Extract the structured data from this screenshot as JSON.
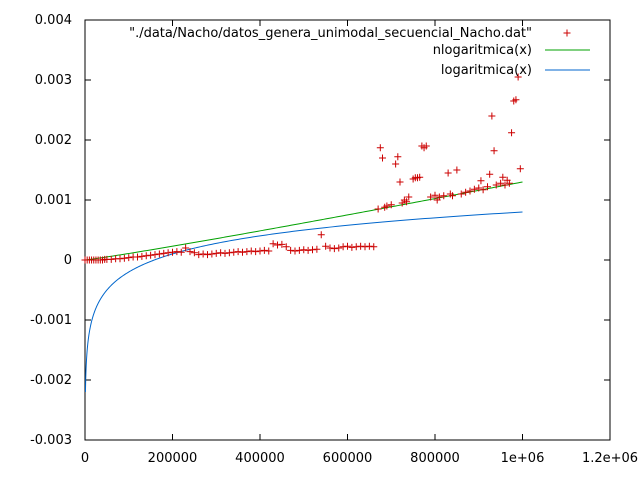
{
  "chart_data": {
    "type": "scatter",
    "title": "",
    "xlabel": "",
    "ylabel": "",
    "xlim": [
      0,
      1200000
    ],
    "ylim": [
      -0.003,
      0.004
    ],
    "grid": false,
    "legend_position": "top-right",
    "x_ticks": [
      {
        "value": 0,
        "label": "0"
      },
      {
        "value": 200000,
        "label": "200000"
      },
      {
        "value": 400000,
        "label": "400000"
      },
      {
        "value": 600000,
        "label": "600000"
      },
      {
        "value": 800000,
        "label": "800000"
      },
      {
        "value": 1000000,
        "label": "1e+06"
      },
      {
        "value": 1200000,
        "label": "1.2e+06"
      }
    ],
    "y_ticks": [
      {
        "value": -0.003,
        "label": "-0.003"
      },
      {
        "value": -0.002,
        "label": "-0.002"
      },
      {
        "value": -0.001,
        "label": "-0.001"
      },
      {
        "value": 0,
        "label": "0"
      },
      {
        "value": 0.001,
        "label": "0.001"
      },
      {
        "value": 0.002,
        "label": "0.002"
      },
      {
        "value": 0.003,
        "label": "0.003"
      },
      {
        "value": 0.004,
        "label": "0.004"
      }
    ],
    "series": [
      {
        "name": "\"./data/Nacho/datos_genera_unimodal_secuencial_Nacho.dat\"",
        "kind": "points",
        "marker": "+",
        "color": "#cc0000",
        "points": [
          [
            0,
            0.0
          ],
          [
            5000,
            0.0
          ],
          [
            10000,
            0.0
          ],
          [
            15000,
            0.0
          ],
          [
            20000,
            0.0
          ],
          [
            25000,
            0.0
          ],
          [
            30000,
            0.0
          ],
          [
            35000,
            0.0
          ],
          [
            40000,
            0.0
          ],
          [
            45000,
            1e-05
          ],
          [
            50000,
            1e-05
          ],
          [
            60000,
            1e-05
          ],
          [
            70000,
            2e-05
          ],
          [
            80000,
            2e-05
          ],
          [
            90000,
            3e-05
          ],
          [
            100000,
            4e-05
          ],
          [
            110000,
            5e-05
          ],
          [
            120000,
            5e-05
          ],
          [
            130000,
            6e-05
          ],
          [
            140000,
            7e-05
          ],
          [
            150000,
            8e-05
          ],
          [
            160000,
            9e-05
          ],
          [
            170000,
            0.0001
          ],
          [
            180000,
            0.00011
          ],
          [
            190000,
            0.00012
          ],
          [
            200000,
            0.00013
          ],
          [
            210000,
            0.00014
          ],
          [
            220000,
            0.00013
          ],
          [
            230000,
            0.0002
          ],
          [
            240000,
            0.00014
          ],
          [
            250000,
            0.00012
          ],
          [
            260000,
            9e-05
          ],
          [
            270000,
            0.0001
          ],
          [
            280000,
            9e-05
          ],
          [
            290000,
            0.0001
          ],
          [
            300000,
            0.00011
          ],
          [
            310000,
            0.00012
          ],
          [
            320000,
            0.00011
          ],
          [
            330000,
            0.00012
          ],
          [
            340000,
            0.00013
          ],
          [
            350000,
            0.00014
          ],
          [
            360000,
            0.00013
          ],
          [
            370000,
            0.00014
          ],
          [
            380000,
            0.00015
          ],
          [
            390000,
            0.00014
          ],
          [
            400000,
            0.00015
          ],
          [
            410000,
            0.00016
          ],
          [
            420000,
            0.00015
          ],
          [
            430000,
            0.00027
          ],
          [
            440000,
            0.00025
          ],
          [
            450000,
            0.00026
          ],
          [
            460000,
            0.00022
          ],
          [
            470000,
            0.00016
          ],
          [
            480000,
            0.00015
          ],
          [
            490000,
            0.00016
          ],
          [
            500000,
            0.00017
          ],
          [
            510000,
            0.00016
          ],
          [
            520000,
            0.00017
          ],
          [
            530000,
            0.00018
          ],
          [
            540000,
            0.00042
          ],
          [
            550000,
            0.00023
          ],
          [
            560000,
            0.0002
          ],
          [
            570000,
            0.00019
          ],
          [
            580000,
            0.0002
          ],
          [
            590000,
            0.00022
          ],
          [
            600000,
            0.00023
          ],
          [
            610000,
            0.00021
          ],
          [
            620000,
            0.00022
          ],
          [
            630000,
            0.00023
          ],
          [
            640000,
            0.00022
          ],
          [
            650000,
            0.00023
          ],
          [
            660000,
            0.00022
          ],
          [
            670000,
            0.00085
          ],
          [
            675000,
            0.00187
          ],
          [
            680000,
            0.0017
          ],
          [
            685000,
            0.00088
          ],
          [
            690000,
            0.0009
          ],
          [
            700000,
            0.00092
          ],
          [
            710000,
            0.0016
          ],
          [
            715000,
            0.00172
          ],
          [
            720000,
            0.0013
          ],
          [
            725000,
            0.00095
          ],
          [
            730000,
            0.001
          ],
          [
            735000,
            0.00097
          ],
          [
            740000,
            0.00105
          ],
          [
            750000,
            0.00135
          ],
          [
            755000,
            0.00137
          ],
          [
            760000,
            0.00137
          ],
          [
            765000,
            0.00138
          ],
          [
            770000,
            0.0019
          ],
          [
            775000,
            0.00187
          ],
          [
            780000,
            0.0019
          ],
          [
            790000,
            0.00105
          ],
          [
            800000,
            0.00108
          ],
          [
            805000,
            0.001
          ],
          [
            810000,
            0.00105
          ],
          [
            820000,
            0.00107
          ],
          [
            830000,
            0.00145
          ],
          [
            835000,
            0.0011
          ],
          [
            840000,
            0.00107
          ],
          [
            850000,
            0.0015
          ],
          [
            860000,
            0.0011
          ],
          [
            870000,
            0.00113
          ],
          [
            880000,
            0.00115
          ],
          [
            890000,
            0.00118
          ],
          [
            900000,
            0.0012
          ],
          [
            905000,
            0.00132
          ],
          [
            910000,
            0.00117
          ],
          [
            920000,
            0.00122
          ],
          [
            925000,
            0.00143
          ],
          [
            930000,
            0.0024
          ],
          [
            935000,
            0.00182
          ],
          [
            940000,
            0.00125
          ],
          [
            950000,
            0.00128
          ],
          [
            955000,
            0.00138
          ],
          [
            960000,
            0.00125
          ],
          [
            965000,
            0.00133
          ],
          [
            970000,
            0.00128
          ],
          [
            975000,
            0.00212
          ],
          [
            980000,
            0.00265
          ],
          [
            985000,
            0.00267
          ],
          [
            990000,
            0.00305
          ],
          [
            995000,
            0.00152
          ]
        ]
      },
      {
        "name": "nlogaritmica(x)",
        "kind": "line",
        "color": "#00a000",
        "formula": "n*log(n)",
        "peak_value": 0.0013
      },
      {
        "name": "logaritmica(x)",
        "kind": "line",
        "color": "#0066cc",
        "formula": "log(n)",
        "endpoint_values": [
          [
            1000,
            -0.0022
          ],
          [
            1000000,
            0.0008
          ]
        ]
      }
    ]
  }
}
